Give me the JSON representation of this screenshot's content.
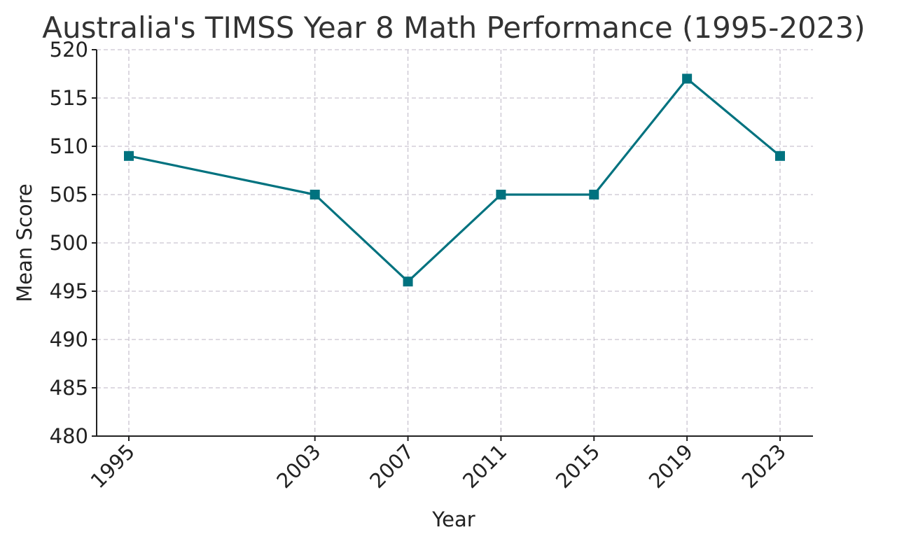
{
  "chart_data": {
    "type": "line",
    "title": "Australia's TIMSS Year 8 Math Performance (1995-2023)",
    "xlabel": "Year",
    "ylabel": "Mean Score",
    "x": [
      1995,
      2003,
      2007,
      2011,
      2015,
      2019,
      2023
    ],
    "x_tick_labels": [
      "1995",
      "2003",
      "2007",
      "2011",
      "2015",
      "2019",
      "2023"
    ],
    "series": [
      {
        "values": [
          509,
          505,
          496,
          505,
          505,
          517,
          509
        ]
      }
    ],
    "ylim": [
      480,
      520
    ],
    "y_ticks": [
      480,
      485,
      490,
      495,
      500,
      505,
      510,
      515,
      520
    ],
    "grid": true,
    "line_color": "#00727f",
    "marker": "square"
  }
}
